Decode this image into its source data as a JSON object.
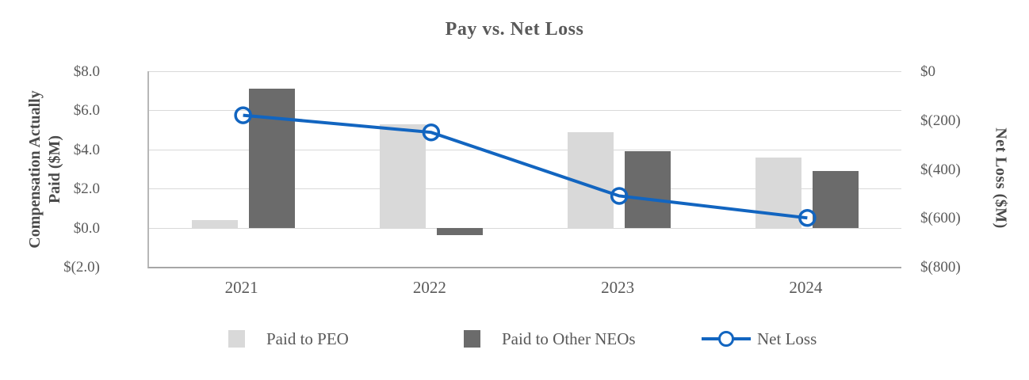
{
  "chart_data": {
    "type": "combo",
    "title": "Pay vs. Net Loss",
    "categories": [
      "2021",
      "2022",
      "2023",
      "2024"
    ],
    "series": [
      {
        "name": "Paid to PEO",
        "type": "bar",
        "axis": "left",
        "color": "#d9d9d9",
        "values": [
          0.4,
          5.3,
          4.9,
          3.6
        ]
      },
      {
        "name": "Paid to Other NEOs",
        "type": "bar",
        "axis": "left",
        "color": "#6b6b6b",
        "values": [
          7.1,
          -0.4,
          3.9,
          2.9
        ]
      },
      {
        "name": "Net Loss",
        "type": "line",
        "axis": "right",
        "color": "#1265c0",
        "values": [
          -180,
          -250,
          -510,
          -600
        ]
      }
    ],
    "left_axis": {
      "title": "Compensation Actually Paid ($M)",
      "title_lines": [
        "Compensation Actually",
        "Paid ($M)"
      ],
      "ticks": [
        "$8.0",
        "$6.0",
        "$4.0",
        "$2.0",
        "$0.0",
        "$(2.0)"
      ],
      "max": 8,
      "min": -2
    },
    "right_axis": {
      "title": "Net Loss  ($M)",
      "ticks": [
        "$0",
        "$(200)",
        "$(400)",
        "$(600)",
        "$(800)"
      ],
      "max": 0,
      "min": -800
    },
    "legend_position": "bottom",
    "grid": true
  }
}
